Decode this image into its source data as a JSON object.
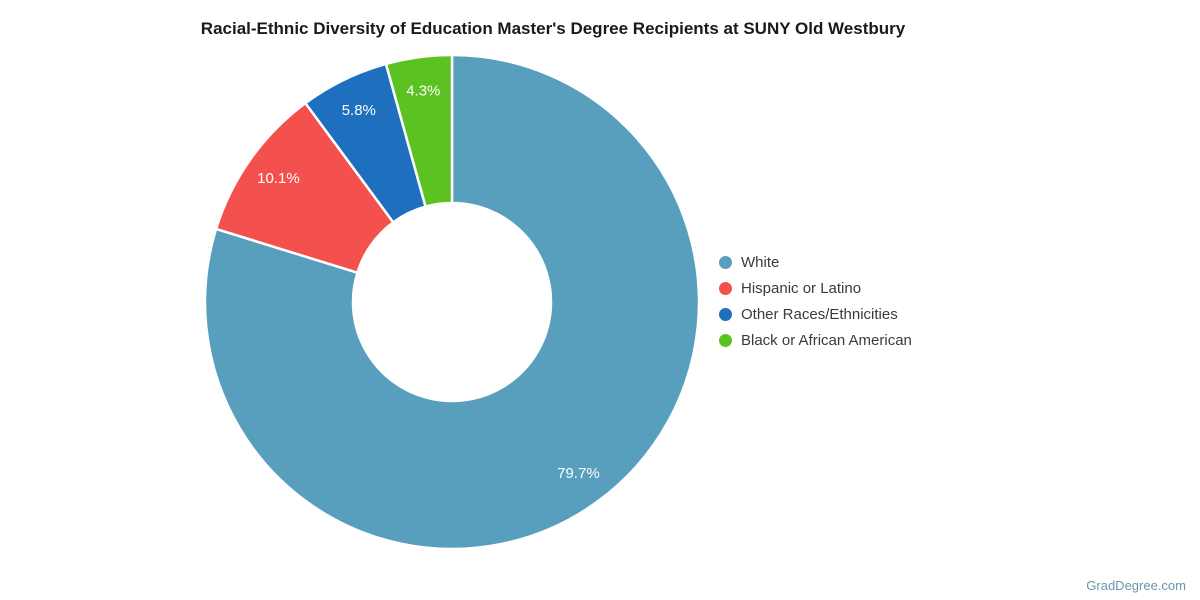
{
  "watermark": "GradDegree.com",
  "chart_data": {
    "type": "pie",
    "subtype": "donut",
    "title": "Racial-Ethnic Diversity of Education Master's Degree Recipients at SUNY Old Westbury",
    "categories": [
      "White",
      "Hispanic or Latino",
      "Other Races/Ethnicities",
      "Black or African American"
    ],
    "values": [
      79.7,
      10.1,
      5.8,
      4.3
    ],
    "value_labels": [
      "79.7%",
      "10.1%",
      "5.8%",
      "4.3%"
    ],
    "colors": [
      "#579fbd",
      "#f3504e",
      "#1f6fbf",
      "#5bc222"
    ],
    "slice_label_color": "#ffffff",
    "start_angle_deg": 0,
    "direction": "clockwise",
    "inner_radius_ratio": 0.4,
    "legend_position": "right",
    "legend": [
      "White",
      "Hispanic or Latino",
      "Other Races/Ethnicities",
      "Black or African American"
    ]
  }
}
